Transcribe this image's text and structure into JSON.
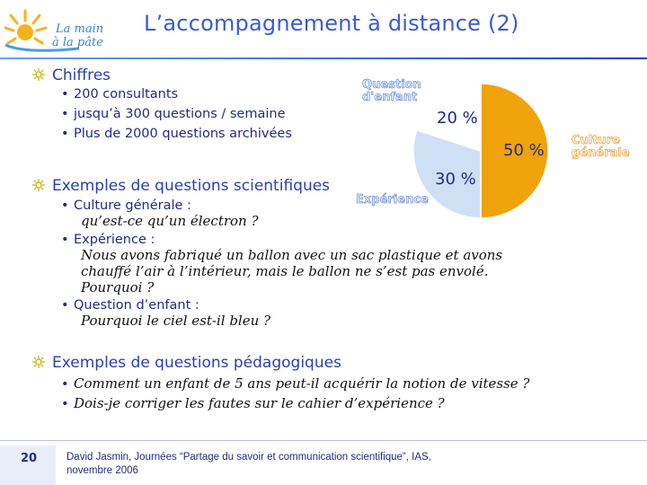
{
  "title": "L’accompagnement à distance (2)",
  "logo": {
    "line1": "La main",
    "line2": "à la pâte"
  },
  "sections": {
    "chiffres": {
      "heading": "Chiffres",
      "items": [
        "200 consultants",
        "jusqu’à 300 questions / semaine",
        "Plus de 2000 questions archivées"
      ]
    },
    "scientifiques": {
      "heading": "Exemples de questions scientifiques",
      "item1_label": "Culture générale :",
      "item1_text": "qu’est-ce qu’un électron ?",
      "item2_label": "Expérience :",
      "item2_line1": "Nous avons fabriqué un ballon avec un sac plastique et avons",
      "item2_line2": "chauffé l’air à l’intérieur, mais le ballon ne s’est pas envolé.",
      "item2_line3": "Pourquoi ?",
      "item3_label": "Question d’enfant :",
      "item3_text": "Pourquoi le ciel est-il bleu ?"
    },
    "pedagogiques": {
      "heading": "Exemples de questions pédagogiques",
      "items": [
        "Comment un enfant de 5 ans peut-il acquérir la notion de vitesse ?",
        "Dois-je corriger les fautes sur le cahier d’expérience ?"
      ]
    }
  },
  "chart_data": {
    "type": "pie",
    "slices": [
      {
        "label": "Culture générale",
        "value": 50,
        "text": "50 %",
        "color": "#f0a30a"
      },
      {
        "label": "Expérience",
        "value": 30,
        "text": "30 %",
        "color": "#cfe0f5"
      },
      {
        "label": "Question d'enfant",
        "value": 20,
        "text": "20 %",
        "color": "#ffffff"
      }
    ],
    "labels_display": {
      "question_enfant_l1": "Question",
      "question_enfant_l2": "d'enfant",
      "culture_l1": "Culture",
      "culture_l2": "générale",
      "experience": "Expérience"
    }
  },
  "footer": {
    "page": "20",
    "credit": "David Jasmin, Journées “Partage du savoir et communication scientifique”, IAS, novembre 2006"
  }
}
